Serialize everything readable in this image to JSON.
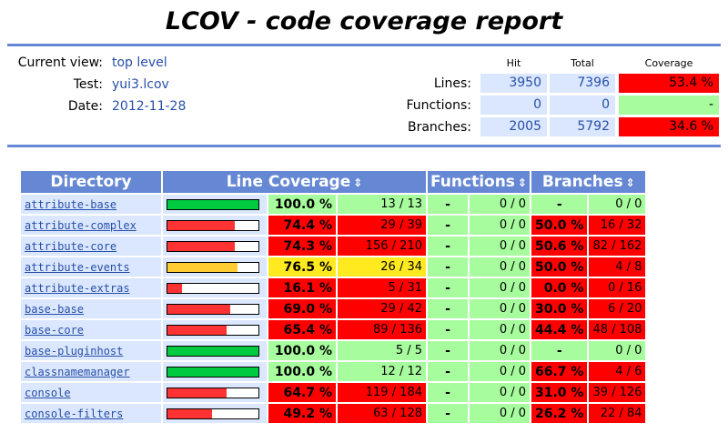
{
  "title": "LCOV - code coverage report",
  "info": {
    "current_view_label": "Current view:",
    "current_view_value": "top level",
    "test_label": "Test:",
    "test_value": "yui3.lcov",
    "date_label": "Date:",
    "date_value": "2012-11-28"
  },
  "summary": {
    "hit_header": "Hit",
    "total_header": "Total",
    "coverage_header": "Coverage",
    "lines_label": "Lines:",
    "lines_hit": "3950",
    "lines_total": "7396",
    "lines_cov": "53.4 %",
    "functions_label": "Functions:",
    "functions_hit": "0",
    "functions_total": "0",
    "functions_cov": "-",
    "branches_label": "Branches:",
    "branches_hit": "2005",
    "branches_total": "5792",
    "branches_cov": "34.6 %"
  },
  "table": {
    "headers": {
      "directory": "Directory",
      "line_coverage": "Line Coverage",
      "functions": "Functions",
      "branches": "Branches",
      "sort_icon": "⇕"
    },
    "colors": {
      "hi": "#a7fc9d",
      "med": "#ffea20",
      "lo": "#ff0000",
      "bar_hi": "#00cb40",
      "bar_med": "#ffcc33",
      "bar_lo": "#ff3333"
    },
    "rows": [
      {
        "dir": "attribute-base",
        "line_fraction": 1.0,
        "line_pct": "100.0 %",
        "line_count": "13 / 13",
        "line_level": "hi",
        "func_pct": "-",
        "func_count": "0 / 0",
        "branch_pct": "-",
        "branch_count": "0 / 0",
        "branch_level": "hi"
      },
      {
        "dir": "attribute-complex",
        "line_fraction": 0.744,
        "line_pct": "74.4 %",
        "line_count": "29 / 39",
        "line_level": "lo",
        "func_pct": "-",
        "func_count": "0 / 0",
        "branch_pct": "50.0 %",
        "branch_count": "16 / 32",
        "branch_level": "lo"
      },
      {
        "dir": "attribute-core",
        "line_fraction": 0.743,
        "line_pct": "74.3 %",
        "line_count": "156 / 210",
        "line_level": "lo",
        "func_pct": "-",
        "func_count": "0 / 0",
        "branch_pct": "50.6 %",
        "branch_count": "82 / 162",
        "branch_level": "lo"
      },
      {
        "dir": "attribute-events",
        "line_fraction": 0.765,
        "line_pct": "76.5 %",
        "line_count": "26 / 34",
        "line_level": "med",
        "func_pct": "-",
        "func_count": "0 / 0",
        "branch_pct": "50.0 %",
        "branch_count": "4 / 8",
        "branch_level": "lo"
      },
      {
        "dir": "attribute-extras",
        "line_fraction": 0.161,
        "line_pct": "16.1 %",
        "line_count": "5 / 31",
        "line_level": "lo",
        "func_pct": "-",
        "func_count": "0 / 0",
        "branch_pct": "0.0 %",
        "branch_count": "0 / 16",
        "branch_level": "lo"
      },
      {
        "dir": "base-base",
        "line_fraction": 0.69,
        "line_pct": "69.0 %",
        "line_count": "29 / 42",
        "line_level": "lo",
        "func_pct": "-",
        "func_count": "0 / 0",
        "branch_pct": "30.0 %",
        "branch_count": "6 / 20",
        "branch_level": "lo"
      },
      {
        "dir": "base-core",
        "line_fraction": 0.654,
        "line_pct": "65.4 %",
        "line_count": "89 / 136",
        "line_level": "lo",
        "func_pct": "-",
        "func_count": "0 / 0",
        "branch_pct": "44.4 %",
        "branch_count": "48 / 108",
        "branch_level": "lo"
      },
      {
        "dir": "base-pluginhost",
        "line_fraction": 1.0,
        "line_pct": "100.0 %",
        "line_count": "5 / 5",
        "line_level": "hi",
        "func_pct": "-",
        "func_count": "0 / 0",
        "branch_pct": "-",
        "branch_count": "0 / 0",
        "branch_level": "hi"
      },
      {
        "dir": "classnamemanager",
        "line_fraction": 1.0,
        "line_pct": "100.0 %",
        "line_count": "12 / 12",
        "line_level": "hi",
        "func_pct": "-",
        "func_count": "0 / 0",
        "branch_pct": "66.7 %",
        "branch_count": "4 / 6",
        "branch_level": "lo"
      },
      {
        "dir": "console",
        "line_fraction": 0.647,
        "line_pct": "64.7 %",
        "line_count": "119 / 184",
        "line_level": "lo",
        "func_pct": "-",
        "func_count": "0 / 0",
        "branch_pct": "31.0 %",
        "branch_count": "39 / 126",
        "branch_level": "lo"
      },
      {
        "dir": "console-filters",
        "line_fraction": 0.492,
        "line_pct": "49.2 %",
        "line_count": "63 / 128",
        "line_level": "lo",
        "func_pct": "-",
        "func_count": "0 / 0",
        "branch_pct": "26.2 %",
        "branch_count": "22 / 84",
        "branch_level": "lo"
      }
    ]
  }
}
